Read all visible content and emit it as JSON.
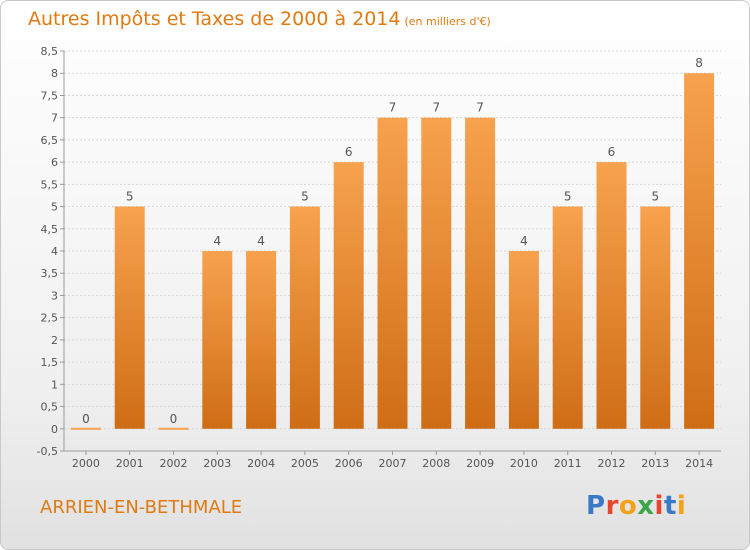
{
  "header": {
    "title": "Autres Impôts et Taxes de 2000 à 2014",
    "subtitle": "(en milliers d'€)"
  },
  "footer": {
    "commune": "ARRIEN-EN-BETHMALE",
    "brand": "Proxiti",
    "brand_letters": [
      "P",
      "r",
      "o",
      "x",
      "i",
      "t",
      "i"
    ],
    "brand_colors": [
      "#3a79c7",
      "#e8452c",
      "#f4a21b",
      "#3aa54a",
      "#e8452c",
      "#3a79c7",
      "#f4a21b"
    ]
  },
  "chart_data": {
    "type": "bar",
    "categories": [
      "2000",
      "2001",
      "2002",
      "2003",
      "2004",
      "2005",
      "2006",
      "2007",
      "2008",
      "2009",
      "2010",
      "2011",
      "2012",
      "2013",
      "2014"
    ],
    "values": [
      0,
      5,
      0,
      4,
      4,
      5,
      6,
      7,
      7,
      7,
      4,
      5,
      6,
      5,
      8
    ],
    "data_labels": [
      "0",
      "5",
      "0",
      "4",
      "4",
      "5",
      "6",
      "7",
      "7",
      "7",
      "4",
      "5",
      "6",
      "5",
      "8"
    ],
    "ylim": [
      -0.5,
      8.5
    ],
    "yticks": [
      "-0,5",
      "0",
      "0,5",
      "1",
      "1,5",
      "2",
      "2,5",
      "3",
      "3,5",
      "4",
      "4,5",
      "5",
      "5,5",
      "6",
      "6,5",
      "7",
      "7,5",
      "8",
      "8,5"
    ],
    "ytick_values": [
      -0.5,
      0,
      0.5,
      1,
      1.5,
      2,
      2.5,
      3,
      3.5,
      4,
      4.5,
      5,
      5.5,
      6,
      6.5,
      7,
      7.5,
      8,
      8.5
    ],
    "grid": true,
    "colors": {
      "bar_light": "#f7a24e",
      "bar_dark": "#cf6d16",
      "label": "#555555",
      "grid": "#d6d6d6",
      "axis": "#9a9a9a"
    }
  }
}
